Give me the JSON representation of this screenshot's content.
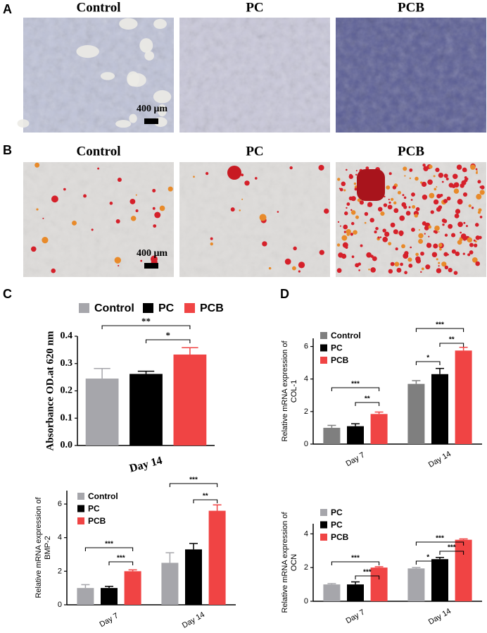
{
  "panels": {
    "labels": [
      "A",
      "B",
      "C",
      "D"
    ]
  },
  "micrographs": [
    {
      "labels": [
        "Control",
        "PC",
        "PCB"
      ],
      "scale_bar": "400 μm"
    },
    {
      "labels": [
        "Control",
        "PC",
        "PCB"
      ],
      "scale_bar": "400 μm"
    }
  ],
  "chart_data": [
    {
      "type": "bar",
      "y_label": [
        "Absorbance OD.at 620 nm"
      ],
      "categories": [
        "Day 14"
      ],
      "series": [
        {
          "name": "Control",
          "color": "#a6a6ab",
          "values": [
            0.245
          ],
          "errors": [
            0.037
          ]
        },
        {
          "name": "PC",
          "color": "#000000",
          "values": [
            0.262
          ],
          "errors": [
            0.01
          ]
        },
        {
          "name": "PCB",
          "color": "#f04444",
          "values": [
            0.333
          ],
          "errors": [
            0.025
          ]
        }
      ],
      "ylim": [
        0,
        0.4
      ],
      "yticks": [
        {
          "value": 0,
          "label": "0.0"
        },
        0.1,
        0.2,
        0.3,
        0.4
      ],
      "annotations": [
        "**",
        "*"
      ],
      "legend": "top"
    },
    {
      "type": "bar",
      "y_label": [
        "Relative mRNA expression of",
        "COL-1"
      ],
      "categories": [
        "Day 7",
        "Day 14"
      ],
      "series": [
        {
          "name": "Control",
          "color": "#7f7f7f",
          "values": [
            1.0,
            3.7
          ],
          "errors": [
            0.15,
            0.2
          ]
        },
        {
          "name": "PC",
          "color": "#000000",
          "values": [
            1.1,
            4.3
          ],
          "errors": [
            0.15,
            0.35
          ]
        },
        {
          "name": "PCB",
          "color": "#f04444",
          "values": [
            1.85,
            5.75
          ],
          "errors": [
            0.12,
            0.2
          ]
        }
      ],
      "ylim": [
        0,
        6.5
      ],
      "yticks": [
        0,
        2,
        4,
        6
      ],
      "annotations": [
        "***",
        "**",
        "***",
        "**",
        "*"
      ],
      "legend": "upper left"
    },
    {
      "type": "bar",
      "y_label": [
        "Relative mRNA expression of",
        "BMP-2"
      ],
      "categories": [
        "Day 7",
        "Day 14"
      ],
      "series": [
        {
          "name": "Control",
          "color": "#a6a6ab",
          "values": [
            1.0,
            2.5
          ],
          "errors": [
            0.2,
            0.6
          ]
        },
        {
          "name": "PC",
          "color": "#000000",
          "values": [
            1.0,
            3.3
          ],
          "errors": [
            0.1,
            0.35
          ]
        },
        {
          "name": "PCB",
          "color": "#f04444",
          "values": [
            2.0,
            5.6
          ],
          "errors": [
            0.08,
            0.35
          ]
        }
      ],
      "ylim": [
        0,
        6.8
      ],
      "yticks": [
        0,
        2,
        4,
        6
      ],
      "annotations": [
        "***",
        "***",
        "***",
        "**"
      ],
      "legend": "upper left"
    },
    {
      "type": "bar",
      "y_label": [
        "Relative mRNA expression of",
        "OCN"
      ],
      "categories": [
        "Day 7",
        "Day 14"
      ],
      "series": [
        {
          "name": "PC",
          "color": "#a6a6ab",
          "values": [
            1.0,
            1.95
          ],
          "errors": [
            0.05,
            0.05
          ]
        },
        {
          "name": "PC",
          "color": "#000000",
          "values": [
            1.0,
            2.5
          ],
          "errors": [
            0.15,
            0.1
          ]
        },
        {
          "name": "PCB",
          "color": "#f04444",
          "values": [
            2.0,
            3.65
          ],
          "errors": [
            0.05,
            0.05
          ]
        }
      ],
      "ylim": [
        0,
        4.6
      ],
      "yticks": [
        0,
        2,
        4
      ],
      "annotations": [
        "***",
        "***",
        "***",
        "*",
        "***"
      ],
      "legend": "upper left"
    }
  ]
}
